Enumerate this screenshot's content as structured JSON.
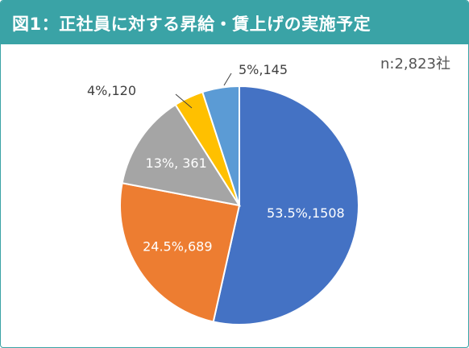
{
  "header": {
    "title": "図1：正社員に対する昇給・賃上げの実施予定"
  },
  "note": {
    "sample_size": "n:2,823社"
  },
  "colors": {
    "header_bg": "#3aa3a6",
    "slice_1": "#4472c4",
    "slice_2": "#ed7d31",
    "slice_3": "#a5a5a5",
    "slice_4": "#ffc000",
    "slice_5": "#5b9bd5"
  },
  "chart_data": {
    "type": "pie",
    "start": "12 o'clock, clockwise",
    "slices": [
      {
        "percent": 53.5,
        "count": 1508,
        "label": "53.5%,1508",
        "color": "#4472c4"
      },
      {
        "percent": 24.5,
        "count": 689,
        "label": "24.5%,689",
        "color": "#ed7d31"
      },
      {
        "percent": 13,
        "count": 361,
        "label": "13%, 361",
        "color": "#a5a5a5"
      },
      {
        "percent": 4,
        "count": 120,
        "label": "4%,120",
        "color": "#ffc000"
      },
      {
        "percent": 5,
        "count": 145,
        "label": "5%,145",
        "color": "#5b9bd5"
      }
    ]
  }
}
